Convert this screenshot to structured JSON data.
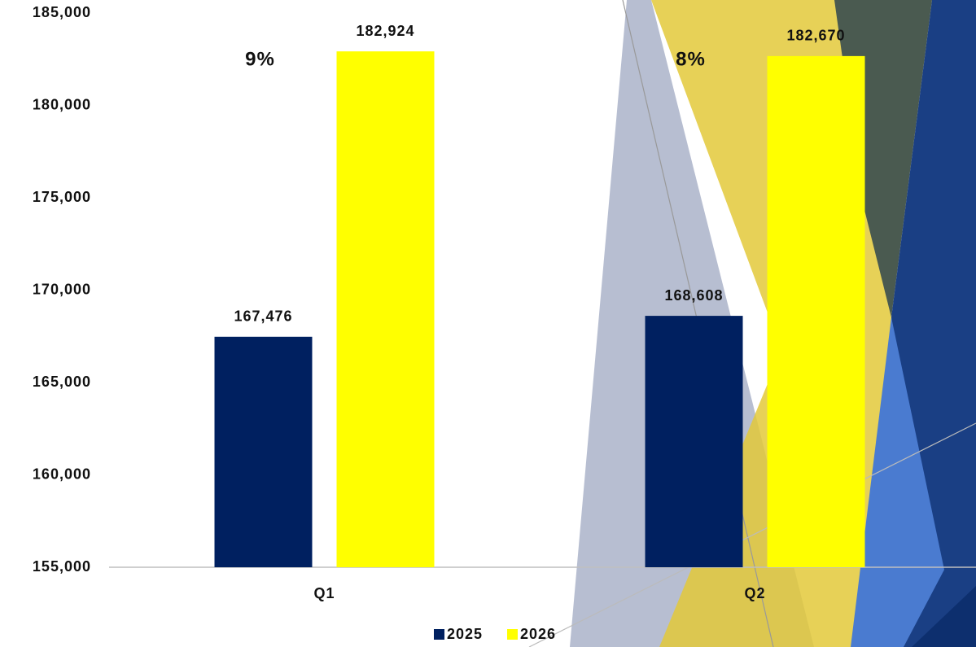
{
  "chart_data": {
    "type": "bar",
    "categories": [
      "Q1",
      "Q2"
    ],
    "series": [
      {
        "name": "2025",
        "color": "#002060",
        "values": [
          167476,
          168608
        ],
        "value_labels": [
          "167,476",
          "168,608"
        ]
      },
      {
        "name": "2026",
        "color": "#ffff00",
        "values": [
          182924,
          182670
        ],
        "value_labels": [
          "182,924",
          "182,670"
        ]
      }
    ],
    "annotations": [
      "9%",
      "8%"
    ],
    "ylim": [
      155000,
      185000
    ],
    "yticks": [
      {
        "value": 155000,
        "label": "155,000"
      },
      {
        "value": 160000,
        "label": "160,000"
      },
      {
        "value": 165000,
        "label": "165,000"
      },
      {
        "value": 170000,
        "label": "170,000"
      },
      {
        "value": 175000,
        "label": "175,000"
      },
      {
        "value": 180000,
        "label": "180,000"
      },
      {
        "value": 185000,
        "label": "185,000"
      }
    ],
    "grid": false,
    "legend": "bottom"
  }
}
